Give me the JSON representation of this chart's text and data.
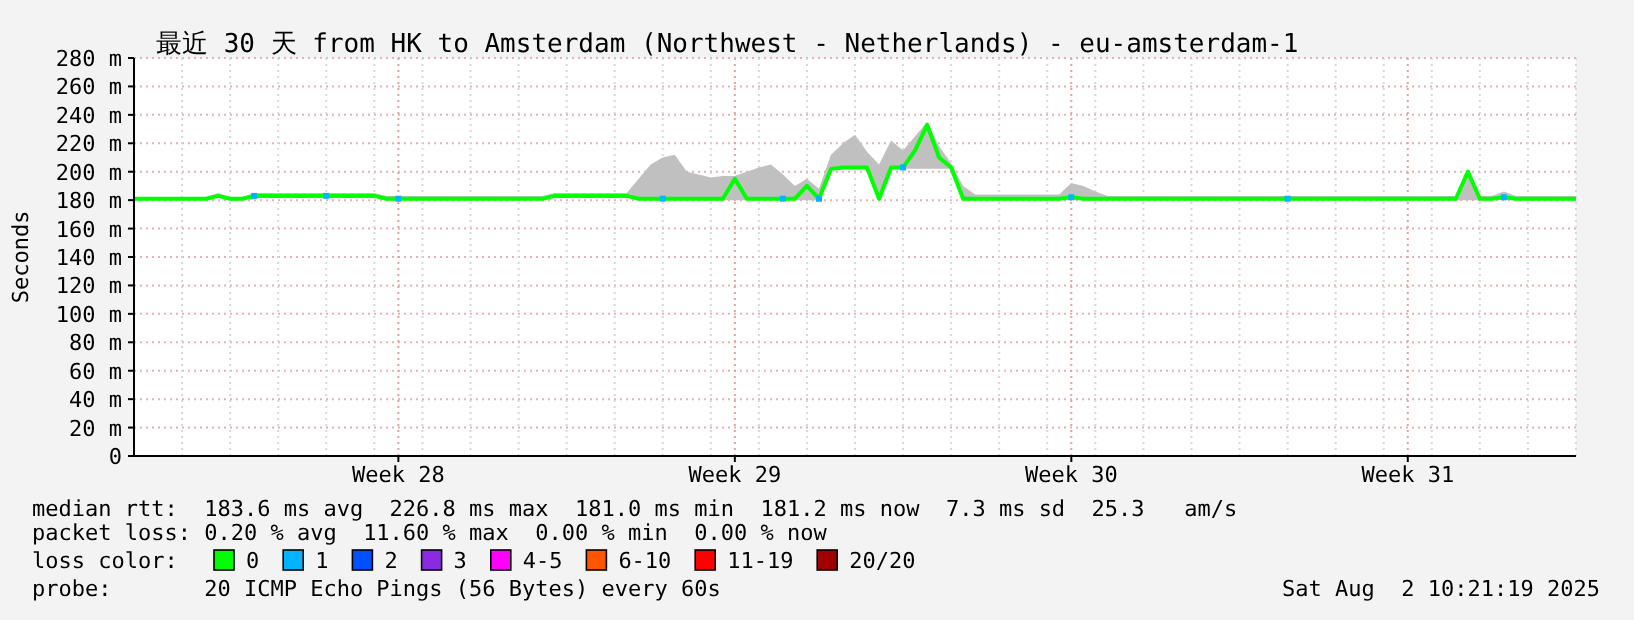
{
  "chart_data": {
    "type": "line",
    "title": "最近 30 天 from HK to Amsterdam (Northwest - Netherlands) - eu-amsterdam-1",
    "ylabel": "Seconds",
    "legend_title": "loss color:",
    "legend": "bottom",
    "grid": true,
    "categories": [
      null,
      null,
      null,
      null,
      null,
      null,
      null,
      null,
      null,
      null,
      null,
      null,
      null,
      null,
      null,
      null,
      null,
      null,
      null,
      null,
      null,
      null,
      "Week 28",
      null,
      null,
      null,
      null,
      null,
      null,
      null,
      null,
      null,
      null,
      null,
      null,
      null,
      null,
      null,
      null,
      null,
      null,
      null,
      null,
      null,
      null,
      null,
      null,
      null,
      null,
      null,
      "Week 29",
      null,
      null,
      null,
      null,
      null,
      null,
      null,
      null,
      null,
      null,
      null,
      null,
      null,
      null,
      null,
      null,
      null,
      null,
      null,
      null,
      null,
      null,
      null,
      null,
      null,
      null,
      null,
      "Week 30",
      null,
      null,
      null,
      null,
      null,
      null,
      null,
      null,
      null,
      null,
      null,
      null,
      null,
      null,
      null,
      null,
      null,
      null,
      null,
      null,
      null,
      null,
      null,
      null,
      null,
      null,
      null,
      "Week 31",
      null,
      null,
      null,
      null,
      null,
      null,
      null,
      null,
      null,
      null,
      null,
      null,
      null,
      null
    ],
    "ylim": [
      0,
      280
    ],
    "yticks": [
      {
        "value": 0,
        "label": "0"
      },
      {
        "value": 20,
        "label": "20 m"
      },
      {
        "value": 40,
        "label": "40 m"
      },
      {
        "value": 60,
        "label": "60 m"
      },
      {
        "value": 80,
        "label": "80 m"
      },
      {
        "value": 100,
        "label": "100 m"
      },
      {
        "value": 120,
        "label": "120 m"
      },
      {
        "value": 140,
        "label": "140 m"
      },
      {
        "value": 160,
        "label": "160 m"
      },
      {
        "value": 180,
        "label": "180 m"
      },
      {
        "value": 200,
        "label": "200 m"
      },
      {
        "value": 220,
        "label": "220 m"
      },
      {
        "value": 240,
        "label": "240 m"
      },
      {
        "value": 260,
        "label": "260 m"
      },
      {
        "value": 280,
        "label": "280 m"
      }
    ],
    "series": [
      {
        "name": "0",
        "color": "#00ff00",
        "values": [
          181,
          181,
          181,
          181,
          181,
          181,
          181,
          183,
          181,
          181,
          183,
          183,
          183,
          183,
          183,
          183,
          183,
          183,
          183,
          183,
          183,
          181,
          181,
          181,
          181,
          181,
          181,
          181,
          181,
          181,
          181,
          181,
          181,
          181,
          181,
          183,
          183,
          183,
          183,
          183,
          183,
          183,
          181,
          181,
          181,
          181,
          181,
          181,
          181,
          181,
          195,
          181,
          181,
          181,
          181,
          181,
          190,
          181,
          202,
          203,
          203,
          203,
          181,
          203,
          203,
          215,
          233,
          210,
          203,
          181,
          181,
          181,
          181,
          181,
          181,
          181,
          181,
          181,
          182,
          181,
          181,
          181,
          181,
          181,
          181,
          181,
          181,
          181,
          181,
          181,
          181,
          181,
          181,
          181,
          181,
          181,
          181,
          181,
          181,
          181,
          181,
          181,
          181,
          181,
          181,
          181,
          181,
          181,
          181,
          181,
          181,
          200,
          181,
          181,
          182,
          181,
          181,
          181,
          181,
          181,
          181
        ],
        "lower": [
          180,
          180,
          180,
          180,
          180,
          180,
          180,
          182,
          180,
          180,
          182,
          182,
          182,
          182,
          182,
          182,
          182,
          182,
          182,
          182,
          182,
          180,
          180,
          180,
          180,
          180,
          180,
          180,
          180,
          180,
          180,
          180,
          180,
          180,
          180,
          182,
          182,
          182,
          182,
          182,
          182,
          182,
          180,
          180,
          180,
          180,
          180,
          180,
          180,
          180,
          180,
          180,
          180,
          180,
          180,
          180,
          180,
          180,
          201,
          202,
          202,
          202,
          180,
          202,
          202,
          202,
          202,
          202,
          202,
          180,
          180,
          180,
          180,
          180,
          180,
          180,
          180,
          180,
          181,
          180,
          180,
          180,
          180,
          180,
          180,
          180,
          180,
          180,
          180,
          180,
          180,
          180,
          180,
          180,
          180,
          180,
          180,
          180,
          180,
          180,
          180,
          180,
          180,
          180,
          180,
          180,
          180,
          180,
          180,
          180,
          180,
          180,
          180,
          180,
          181,
          180,
          180,
          180,
          180,
          180,
          180
        ],
        "upper": [
          182,
          182,
          182,
          182,
          182,
          182,
          182,
          185,
          182,
          182,
          185,
          185,
          185,
          185,
          185,
          185,
          185,
          185,
          185,
          185,
          185,
          183,
          183,
          183,
          183,
          183,
          183,
          183,
          183,
          183,
          183,
          183,
          183,
          183,
          183,
          185,
          185,
          185,
          185,
          185,
          185,
          185,
          195,
          205,
          210,
          212,
          200,
          198,
          196,
          197,
          197,
          200,
          203,
          205,
          198,
          190,
          195,
          188,
          212,
          220,
          226,
          214,
          205,
          222,
          215,
          225,
          235,
          218,
          206,
          190,
          184,
          184,
          184,
          184,
          184,
          184,
          184,
          184,
          192,
          190,
          186,
          183,
          183,
          183,
          183,
          183,
          183,
          183,
          183,
          183,
          183,
          183,
          183,
          183,
          183,
          183,
          183,
          183,
          183,
          183,
          183,
          183,
          183,
          183,
          183,
          183,
          183,
          183,
          183,
          183,
          183,
          202,
          183,
          183,
          186,
          183,
          183,
          183,
          183,
          183,
          183
        ]
      },
      {
        "name": "1",
        "type": "scatter",
        "color": "#00b4ff",
        "values": [
          null,
          null,
          null,
          null,
          null,
          null,
          null,
          null,
          null,
          null,
          183,
          null,
          null,
          null,
          null,
          null,
          183,
          null,
          null,
          null,
          null,
          null,
          181,
          null,
          null,
          null,
          null,
          null,
          null,
          null,
          null,
          null,
          null,
          null,
          null,
          null,
          null,
          null,
          null,
          null,
          null,
          null,
          null,
          null,
          181,
          null,
          null,
          null,
          null,
          null,
          null,
          null,
          null,
          null,
          181,
          null,
          null,
          181,
          null,
          null,
          null,
          null,
          null,
          null,
          203,
          null,
          null,
          null,
          null,
          null,
          null,
          null,
          null,
          null,
          null,
          null,
          null,
          null,
          182,
          null,
          null,
          null,
          null,
          null,
          null,
          null,
          null,
          null,
          null,
          null,
          null,
          null,
          null,
          null,
          null,
          null,
          181,
          null,
          null,
          null,
          null,
          null,
          null,
          null,
          null,
          null,
          null,
          null,
          null,
          null,
          null,
          null,
          null,
          null,
          182,
          null,
          null,
          null,
          null,
          null,
          null
        ]
      },
      {
        "name": "2",
        "type": "scatter",
        "color": "#0050ff",
        "values": [
          null,
          null,
          null,
          null,
          null,
          null,
          null,
          null,
          null,
          null,
          null,
          null,
          null,
          null,
          null,
          null,
          null,
          null,
          null,
          null,
          null,
          null,
          null,
          null,
          null,
          null,
          null,
          null,
          null,
          null,
          null,
          null,
          null,
          null,
          null,
          null,
          null,
          null,
          null,
          null,
          null,
          null,
          null,
          null,
          null,
          null,
          null,
          null,
          null,
          null,
          null,
          null,
          null,
          null,
          null,
          null,
          null,
          null,
          null,
          null,
          null,
          null,
          null,
          null,
          null,
          null,
          null,
          null,
          null,
          null,
          null,
          null,
          null,
          null,
          null,
          null,
          null,
          null,
          null,
          null,
          null,
          null,
          null,
          null,
          null,
          null,
          null,
          null,
          null,
          null,
          null,
          null,
          null,
          null,
          null,
          null,
          null,
          null,
          null,
          null,
          null,
          null,
          null,
          null,
          null,
          null,
          null,
          null,
          null,
          null,
          null,
          null,
          null,
          null,
          null,
          null,
          null,
          null,
          null,
          null,
          null
        ]
      },
      {
        "name": "3",
        "type": "scatter",
        "color": "#8a2be2",
        "values": [
          null,
          null,
          null,
          null,
          null,
          null,
          null,
          null,
          null,
          null,
          null,
          null,
          null,
          null,
          null,
          null,
          null,
          null,
          null,
          null,
          null,
          null,
          null,
          null,
          null,
          null,
          null,
          null,
          null,
          null,
          null,
          null,
          null,
          null,
          null,
          null,
          null,
          null,
          null,
          null,
          null,
          null,
          null,
          null,
          null,
          null,
          null,
          null,
          null,
          null,
          null,
          null,
          null,
          null,
          null,
          null,
          null,
          null,
          null,
          null,
          null,
          null,
          null,
          null,
          null,
          null,
          null,
          null,
          null,
          null,
          null,
          null,
          null,
          null,
          null,
          null,
          null,
          null,
          null,
          null,
          null,
          null,
          null,
          null,
          null,
          null,
          null,
          null,
          null,
          null,
          null,
          null,
          null,
          null,
          null,
          null,
          null,
          null,
          null,
          null,
          null,
          null,
          null,
          null,
          null,
          null,
          null,
          null,
          null,
          null,
          null,
          null,
          null,
          null,
          null,
          null,
          null,
          null,
          null,
          null,
          null
        ]
      },
      {
        "name": "4-5",
        "type": "scatter",
        "color": "#ff00ff",
        "values": [
          null,
          null,
          null,
          null,
          null,
          null,
          null,
          null,
          null,
          null,
          null,
          null,
          null,
          null,
          null,
          null,
          null,
          null,
          null,
          null,
          null,
          null,
          null,
          null,
          null,
          null,
          null,
          null,
          null,
          null,
          null,
          null,
          null,
          null,
          null,
          null,
          null,
          null,
          null,
          null,
          null,
          null,
          null,
          null,
          null,
          null,
          null,
          null,
          null,
          null,
          null,
          null,
          null,
          null,
          null,
          null,
          null,
          null,
          null,
          null,
          null,
          null,
          null,
          null,
          null,
          null,
          null,
          null,
          null,
          null,
          null,
          null,
          null,
          null,
          null,
          null,
          null,
          null,
          null,
          null,
          null,
          null,
          null,
          null,
          null,
          null,
          null,
          null,
          null,
          null,
          null,
          null,
          null,
          null,
          null,
          null,
          null,
          null,
          null,
          null,
          null,
          null,
          null,
          null,
          null,
          null,
          null,
          null,
          null,
          null,
          null,
          null,
          null,
          null,
          null,
          null,
          null,
          null,
          null,
          null,
          null
        ]
      },
      {
        "name": "6-10",
        "type": "scatter",
        "color": "#ff5500",
        "values": [
          null,
          null,
          null,
          null,
          null,
          null,
          null,
          null,
          null,
          null,
          null,
          null,
          null,
          null,
          null,
          null,
          null,
          null,
          null,
          null,
          null,
          null,
          null,
          null,
          null,
          null,
          null,
          null,
          null,
          null,
          null,
          null,
          null,
          null,
          null,
          null,
          null,
          null,
          null,
          null,
          null,
          null,
          null,
          null,
          null,
          null,
          null,
          null,
          null,
          null,
          null,
          null,
          null,
          null,
          null,
          null,
          null,
          null,
          null,
          null,
          null,
          null,
          null,
          null,
          null,
          null,
          null,
          null,
          null,
          null,
          null,
          null,
          null,
          null,
          null,
          null,
          null,
          null,
          null,
          null,
          null,
          null,
          null,
          null,
          null,
          null,
          null,
          null,
          null,
          null,
          null,
          null,
          null,
          null,
          null,
          null,
          null,
          null,
          null,
          null,
          null,
          null,
          null,
          null,
          null,
          null,
          null,
          null,
          null,
          null,
          null,
          null,
          null,
          null,
          null,
          null,
          null,
          null,
          null,
          null,
          null
        ]
      },
      {
        "name": "11-19",
        "type": "scatter",
        "color": "#ff0000",
        "values": [
          null,
          null,
          null,
          null,
          null,
          null,
          null,
          null,
          null,
          null,
          null,
          null,
          null,
          null,
          null,
          null,
          null,
          null,
          null,
          null,
          null,
          null,
          null,
          null,
          null,
          null,
          null,
          null,
          null,
          null,
          null,
          null,
          null,
          null,
          null,
          null,
          null,
          null,
          null,
          null,
          null,
          null,
          null,
          null,
          null,
          null,
          null,
          null,
          null,
          null,
          null,
          null,
          null,
          null,
          null,
          null,
          null,
          null,
          null,
          null,
          null,
          null,
          null,
          null,
          null,
          null,
          null,
          null,
          null,
          null,
          null,
          null,
          null,
          null,
          null,
          null,
          null,
          null,
          null,
          null,
          null,
          null,
          null,
          null,
          null,
          null,
          null,
          null,
          null,
          null,
          null,
          null,
          null,
          null,
          null,
          null,
          null,
          null,
          null,
          null,
          null,
          null,
          null,
          null,
          null,
          null,
          null,
          null,
          null,
          null,
          null,
          null,
          null,
          null,
          null,
          null,
          null,
          null,
          null,
          null,
          null
        ]
      },
      {
        "name": "20/20",
        "type": "scatter",
        "color": "#a10000",
        "values": [
          null,
          null,
          null,
          null,
          null,
          null,
          null,
          null,
          null,
          null,
          null,
          null,
          null,
          null,
          null,
          null,
          null,
          null,
          null,
          null,
          null,
          null,
          null,
          null,
          null,
          null,
          null,
          null,
          null,
          null,
          null,
          null,
          null,
          null,
          null,
          null,
          null,
          null,
          null,
          null,
          null,
          null,
          null,
          null,
          null,
          null,
          null,
          null,
          null,
          null,
          null,
          null,
          null,
          null,
          null,
          null,
          null,
          null,
          null,
          null,
          null,
          null,
          null,
          null,
          null,
          null,
          null,
          null,
          null,
          null,
          null,
          null,
          null,
          null,
          null,
          null,
          null,
          null,
          null,
          null,
          null,
          null,
          null,
          null,
          null,
          null,
          null,
          null,
          null,
          null,
          null,
          null,
          null,
          null,
          null,
          null,
          null,
          null,
          null,
          null,
          null,
          null,
          null,
          null,
          null,
          null,
          null,
          null,
          null,
          null,
          null,
          null,
          null,
          null,
          null,
          null,
          null,
          null,
          null,
          null,
          null
        ]
      }
    ],
    "annotations": [
      "median rtt:  183.6 ms avg  226.8 ms max  181.0 ms min  181.2 ms now  7.3 ms sd  25.3   am/s",
      "packet loss: 0.20 % avg  11.60 % max  0.00 % min  0.00 % now",
      "probe:       20 ICMP Echo Pings (56 Bytes) every 60s",
      "Sat Aug  2 10:21:19 2025"
    ]
  }
}
